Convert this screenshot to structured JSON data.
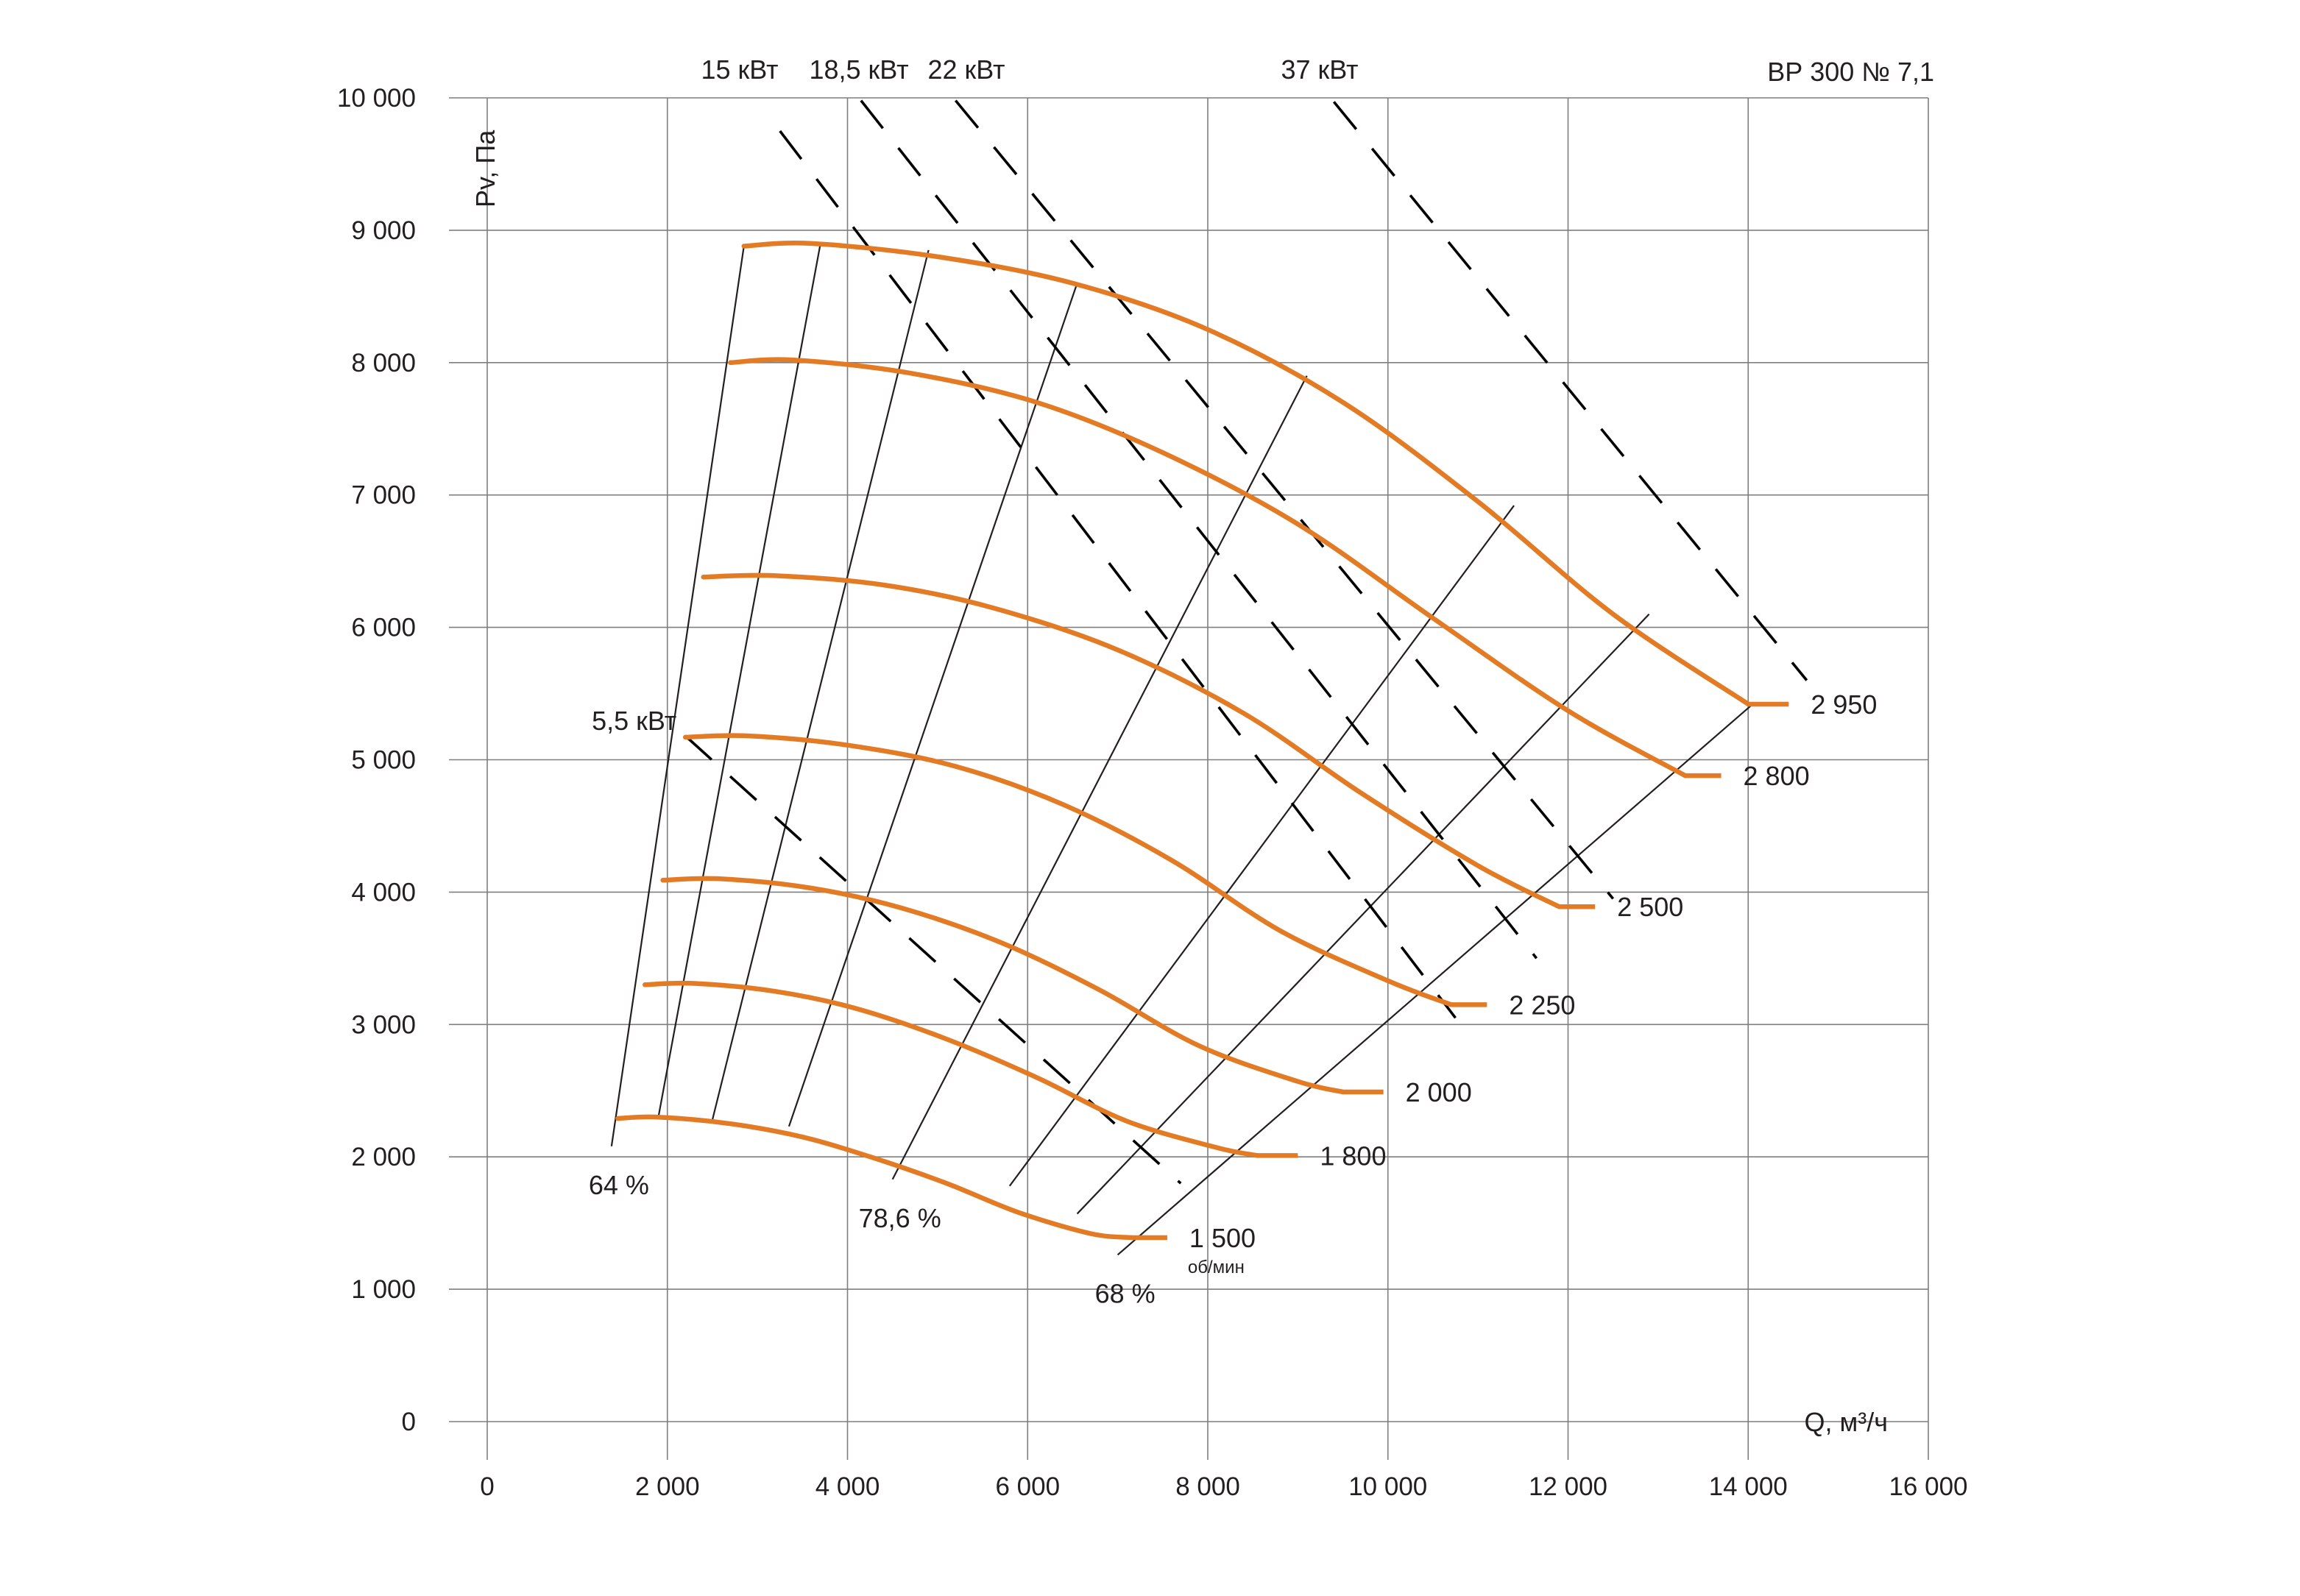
{
  "chart_data": {
    "type": "line",
    "title": "ВР 300 № 7,1",
    "xlabel": "Q, м³/ч",
    "ylabel": "Pv, Па",
    "xlim": [
      0,
      16000
    ],
    "ylim": [
      0,
      10000
    ],
    "grid": true,
    "x_ticks": [
      0,
      2000,
      4000,
      6000,
      8000,
      10000,
      12000,
      14000,
      16000
    ],
    "x_tick_labels": [
      "0",
      "2 000",
      "4 000",
      "6 000",
      "8 000",
      "10 000",
      "12 000",
      "14 000",
      "16 000"
    ],
    "y_ticks": [
      0,
      1000,
      2000,
      3000,
      4000,
      5000,
      6000,
      7000,
      8000,
      9000,
      10000
    ],
    "y_tick_labels": [
      "0",
      "1 000",
      "2 000",
      "3 000",
      "4 000",
      "5 000",
      "6 000",
      "7 000",
      "8 000",
      "9 000",
      "10 000"
    ],
    "rpm_unit": "об/мин",
    "speed_curves": [
      {
        "label": "2 950",
        "x": [
          2850,
          3600,
          5000,
          6500,
          8000,
          9500,
          11000,
          12500,
          14000
        ],
        "y": [
          8880,
          8900,
          8800,
          8600,
          8250,
          7700,
          6950,
          6100,
          5420
        ],
        "tail_end": 14450
      },
      {
        "label": "2 800",
        "x": [
          2700,
          3400,
          4700,
          6100,
          7500,
          9000,
          10500,
          12000,
          13300
        ],
        "y": [
          8000,
          8020,
          7920,
          7700,
          7320,
          6780,
          6070,
          5370,
          4880
        ],
        "tail_end": 13700
      },
      {
        "label": "2 500",
        "x": [
          2400,
          3200,
          4400,
          5600,
          7000,
          8400,
          9700,
          11000,
          11900
        ],
        "y": [
          6380,
          6390,
          6320,
          6150,
          5830,
          5350,
          4750,
          4200,
          3890
        ],
        "tail_end": 12300
      },
      {
        "label": "2 250",
        "x": [
          2200,
          2900,
          4000,
          5200,
          6400,
          7600,
          8800,
          10000,
          10700
        ],
        "y": [
          5170,
          5180,
          5110,
          4950,
          4660,
          4240,
          3710,
          3330,
          3150
        ],
        "tail_end": 11100
      },
      {
        "label": "2 000",
        "x": [
          1950,
          2600,
          3600,
          4600,
          5700,
          6800,
          7900,
          9000,
          9500
        ],
        "y": [
          4090,
          4100,
          4030,
          3880,
          3620,
          3260,
          2840,
          2570,
          2490
        ],
        "tail_end": 9950
      },
      {
        "label": "1 800",
        "x": [
          1750,
          2300,
          3200,
          4100,
          5100,
          6100,
          7100,
          8100,
          8550
        ],
        "y": [
          3300,
          3310,
          3250,
          3120,
          2890,
          2600,
          2270,
          2070,
          2010
        ],
        "tail_end": 9000
      },
      {
        "label": "1 500",
        "x": [
          1450,
          1900,
          2700,
          3500,
          4300,
          5100,
          5900,
          6700,
          7150
        ],
        "y": [
          2290,
          2300,
          2250,
          2150,
          1990,
          1800,
          1580,
          1420,
          1390
        ],
        "tail_end": 7550
      }
    ],
    "efficiency_lines": [
      {
        "label": "64 %",
        "x": [
          1380,
          2850
        ],
        "y": [
          2080,
          8880
        ]
      },
      {
        "label": "",
        "x": [
          1900,
          3700
        ],
        "y": [
          2300,
          8900
        ]
      },
      {
        "label": "",
        "x": [
          2500,
          4900
        ],
        "y": [
          2280,
          8850
        ]
      },
      {
        "label": "",
        "x": [
          3350,
          6550
        ],
        "y": [
          2230,
          8600
        ]
      },
      {
        "label": "78,6 %",
        "x": [
          4500,
          9100
        ],
        "y": [
          1830,
          7900
        ]
      },
      {
        "label": "",
        "x": [
          5800,
          11400
        ],
        "y": [
          1780,
          6920
        ]
      },
      {
        "label": "",
        "x": [
          6550,
          12900
        ],
        "y": [
          1570,
          6100
        ]
      },
      {
        "label": "68 %",
        "x": [
          7000,
          14050
        ],
        "y": [
          1260,
          5420
        ]
      }
    ],
    "power_lines": [
      {
        "label": "5,5 кВт",
        "x": [
          2200,
          7700
        ],
        "y": [
          5180,
          1800
        ]
      },
      {
        "label": "15 кВт",
        "x": [
          3250,
          10750
        ],
        "y": [
          9750,
          3050
        ]
      },
      {
        "label": "18,5 кВт",
        "x": [
          4150,
          11650
        ],
        "y": [
          9980,
          3500
        ]
      },
      {
        "label": "22 кВт",
        "x": [
          5200,
          12500
        ],
        "y": [
          9980,
          3950
        ]
      },
      {
        "label": "37 кВт",
        "x": [
          9400,
          14650
        ],
        "y": [
          9970,
          5600
        ]
      }
    ]
  }
}
